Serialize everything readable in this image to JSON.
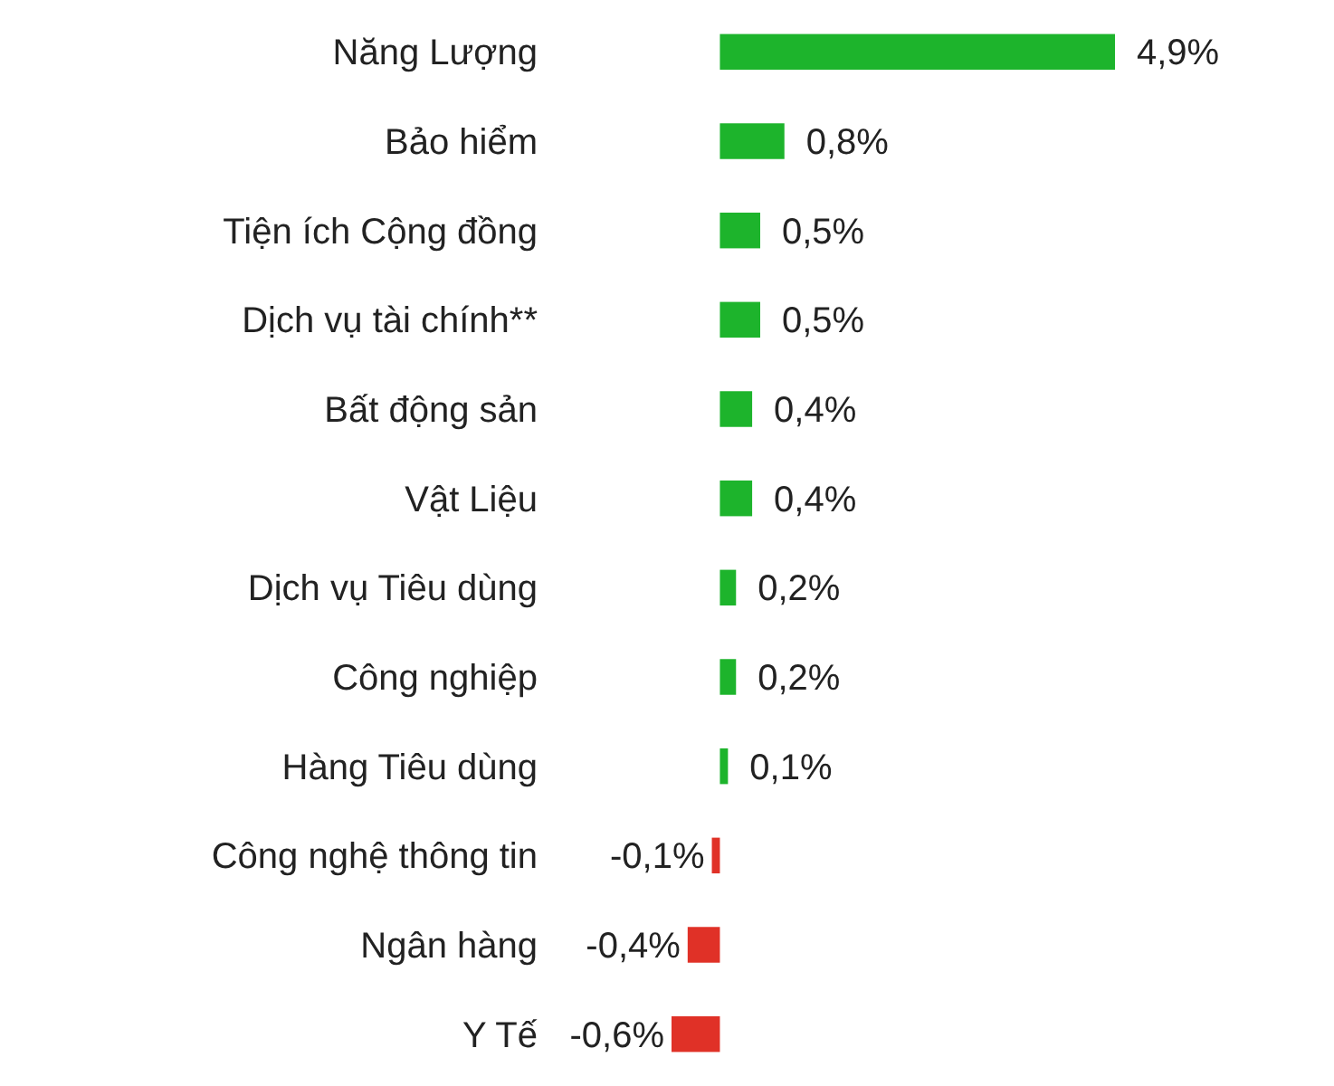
{
  "chart_data": {
    "type": "bar",
    "orientation": "horizontal",
    "categories": [
      "Năng Lượng",
      "Bảo hiểm",
      "Tiện ích Cộng đồng",
      "Dịch vụ tài chính**",
      "Bất động sản",
      "Vật Liệu",
      "Dịch vụ Tiêu dùng",
      "Công nghiệp",
      "Hàng Tiêu dùng",
      "Công nghệ thông tin",
      "Ngân hàng",
      "Y Tế"
    ],
    "values": [
      4.9,
      0.8,
      0.5,
      0.5,
      0.4,
      0.4,
      0.2,
      0.2,
      0.1,
      -0.1,
      -0.4,
      -0.6
    ],
    "colors": [
      "#1db42c",
      "#1db42c",
      "#1db42c",
      "#1db42c",
      "#1db42c",
      "#1db42c",
      "#1db42c",
      "#1db42c",
      "#1db42c",
      "#e03127",
      "#e03127",
      "#e03127"
    ],
    "value_labels": [
      "4,9%",
      "0,8%",
      "0,5%",
      "0,5%",
      "0,4%",
      "0,4%",
      "0,2%",
      "0,2%",
      "0,1%",
      "-0,1%",
      "-0,4%",
      "-0,6%"
    ],
    "xlim": [
      -0.6,
      4.9
    ]
  }
}
